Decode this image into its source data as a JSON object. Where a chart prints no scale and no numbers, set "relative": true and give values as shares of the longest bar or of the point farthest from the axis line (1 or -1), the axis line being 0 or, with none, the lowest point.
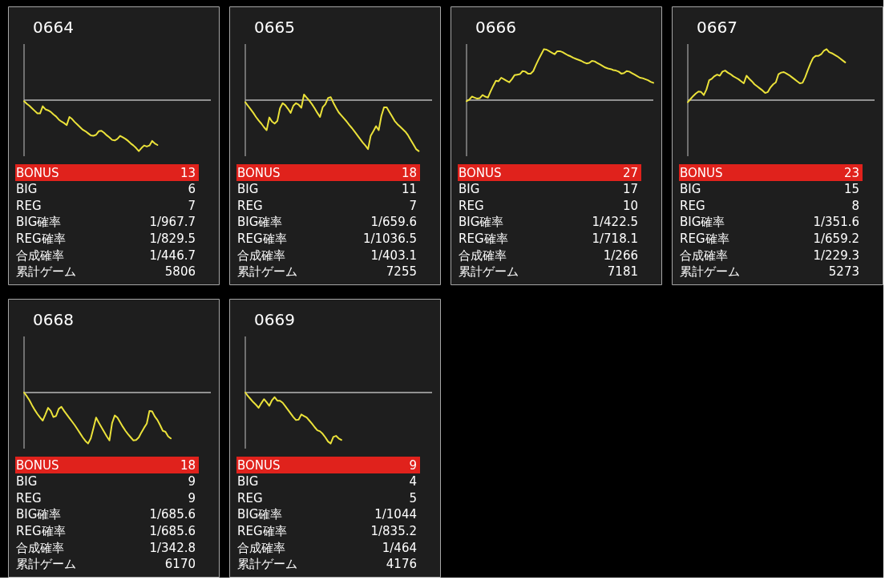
{
  "chart_data": [
    {
      "type": "line",
      "title": "0664",
      "relative": true,
      "categories": [
        null,
        null,
        null,
        null,
        null,
        null,
        null,
        null,
        null,
        null,
        null,
        null,
        null,
        null,
        null,
        null,
        null,
        null,
        null,
        null,
        null,
        null,
        null,
        null,
        null,
        null,
        null,
        null,
        null,
        null,
        null,
        null,
        null,
        null,
        null,
        null,
        null,
        null,
        null,
        null,
        null,
        null,
        null,
        null,
        null,
        null,
        null,
        null,
        null,
        null,
        null,
        null,
        null,
        null,
        null,
        null,
        null,
        null,
        null,
        null,
        null,
        null,
        null,
        null,
        null,
        null,
        null,
        null,
        null,
        null,
        null
      ],
      "series": [
        {
          "color": "#ebe23a",
          "values": [
            -0.02,
            -0.07,
            -0.11,
            -0.16,
            -0.21,
            -0.26,
            -0.26,
            -0.12,
            -0.18,
            -0.2,
            -0.23,
            -0.28,
            -0.32,
            -0.38,
            -0.42,
            -0.45,
            -0.49,
            -0.33,
            -0.37,
            -0.43,
            -0.48,
            -0.53,
            -0.58,
            -0.61,
            -0.65,
            -0.69,
            -0.7,
            -0.68,
            -0.61,
            -0.6,
            -0.64,
            -0.69,
            -0.73,
            -0.78,
            -0.79,
            -0.76,
            -0.7,
            -0.73,
            -0.76,
            -0.8,
            -0.85,
            -0.89,
            -0.94,
            -1,
            -0.94,
            -0.89,
            -0.91,
            -0.89,
            -0.8,
            -0.85,
            -0.88,
            null,
            null,
            null,
            null,
            null,
            null,
            null,
            null,
            null,
            null,
            null,
            null,
            null,
            null,
            null,
            null,
            null,
            null,
            null,
            null
          ]
        }
      ],
      "annotations": [
        "BONUS",
        "13",
        "BIG",
        "6",
        "REG",
        "7",
        "BIG確率",
        "1/967.7",
        "REG確率",
        "1/829.5",
        "合成確率",
        "1/446.7",
        "累計ゲーム",
        "5806"
      ]
    },
    {
      "type": "line",
      "title": "0665",
      "relative": true,
      "categories": [
        null,
        null,
        null,
        null,
        null,
        null,
        null,
        null,
        null,
        null,
        null,
        null,
        null,
        null,
        null,
        null,
        null,
        null,
        null,
        null,
        null,
        null,
        null,
        null,
        null,
        null,
        null,
        null,
        null,
        null,
        null,
        null,
        null,
        null,
        null,
        null,
        null,
        null,
        null,
        null,
        null,
        null,
        null,
        null,
        null,
        null,
        null,
        null,
        null,
        null,
        null,
        null,
        null,
        null,
        null,
        null,
        null,
        null,
        null,
        null,
        null,
        null,
        null,
        null,
        null,
        null,
        null,
        null,
        null,
        null,
        null
      ],
      "series": [
        {
          "color": "#ebe23a",
          "values": [
            -0.04,
            -0.11,
            -0.18,
            -0.25,
            -0.33,
            -0.4,
            -0.46,
            -0.53,
            -0.59,
            -0.34,
            -0.42,
            -0.46,
            -0.41,
            -0.16,
            -0.06,
            -0.1,
            -0.17,
            -0.25,
            -0.11,
            -0.06,
            -0.09,
            -0.15,
            0.11,
            0.05,
            -0.01,
            -0.08,
            -0.16,
            -0.25,
            -0.33,
            -0.14,
            -0.08,
            0.04,
            0.06,
            -0.05,
            -0.15,
            -0.24,
            -0.3,
            -0.36,
            -0.42,
            -0.49,
            -0.55,
            -0.62,
            -0.69,
            -0.76,
            -0.83,
            -0.89,
            -0.96,
            -0.7,
            -0.61,
            -0.51,
            -0.59,
            -0.31,
            -0.14,
            -0.14,
            -0.23,
            -0.32,
            -0.41,
            -0.47,
            -0.52,
            -0.57,
            -0.62,
            -0.69,
            -0.78,
            -0.87,
            -0.96,
            -1,
            null,
            null,
            null,
            null,
            null
          ]
        }
      ],
      "annotations": [
        "BONUS",
        "18",
        "BIG",
        "11",
        "REG",
        "7",
        "BIG確率",
        "1/659.6",
        "REG確率",
        "1/1036.5",
        "合成確率",
        "1/403.1",
        "累計ゲーム",
        "7255"
      ]
    },
    {
      "type": "line",
      "title": "0666",
      "relative": true,
      "categories": [
        null,
        null,
        null,
        null,
        null,
        null,
        null,
        null,
        null,
        null,
        null,
        null,
        null,
        null,
        null,
        null,
        null,
        null,
        null,
        null,
        null,
        null,
        null,
        null,
        null,
        null,
        null,
        null,
        null,
        null,
        null,
        null,
        null,
        null,
        null,
        null,
        null,
        null,
        null,
        null,
        null,
        null,
        null,
        null,
        null,
        null,
        null,
        null,
        null,
        null,
        null,
        null,
        null,
        null,
        null,
        null,
        null,
        null,
        null,
        null,
        null,
        null,
        null,
        null,
        null,
        null,
        null,
        null,
        null,
        null,
        null
      ],
      "series": [
        {
          "color": "#ebe23a",
          "values": [
            -0.02,
            0.01,
            0.07,
            0.05,
            0.03,
            0.04,
            0.1,
            0.07,
            0.05,
            0.17,
            0.28,
            0.38,
            0.37,
            0.44,
            0.41,
            0.38,
            0.35,
            0.41,
            0.49,
            0.5,
            0.51,
            0.57,
            0.56,
            0.52,
            0.52,
            0.57,
            0.69,
            0.8,
            0.9,
            1,
            0.99,
            0.96,
            0.93,
            0.9,
            0.96,
            0.96,
            0.94,
            0.91,
            0.88,
            0.86,
            0.83,
            0.81,
            0.79,
            0.77,
            0.74,
            0.72,
            0.73,
            0.77,
            0.76,
            0.73,
            0.7,
            0.67,
            0.64,
            0.62,
            0.61,
            0.59,
            0.58,
            0.56,
            0.52,
            0.53,
            0.57,
            0.56,
            0.53,
            0.5,
            0.47,
            0.44,
            0.43,
            0.41,
            0.39,
            0.36,
            0.34
          ]
        }
      ],
      "annotations": [
        "BONUS",
        "27",
        "BIG",
        "17",
        "REG",
        "10",
        "BIG確率",
        "1/422.5",
        "REG確率",
        "1/718.1",
        "合成確率",
        "1/266",
        "累計ゲーム",
        "7181"
      ]
    },
    {
      "type": "line",
      "title": "0667",
      "relative": true,
      "categories": [
        null,
        null,
        null,
        null,
        null,
        null,
        null,
        null,
        null,
        null,
        null,
        null,
        null,
        null,
        null,
        null,
        null,
        null,
        null,
        null,
        null,
        null,
        null,
        null,
        null,
        null,
        null,
        null,
        null,
        null,
        null,
        null,
        null,
        null,
        null,
        null,
        null,
        null,
        null,
        null,
        null,
        null,
        null,
        null,
        null,
        null,
        null,
        null,
        null,
        null,
        null,
        null,
        null,
        null,
        null,
        null,
        null,
        null,
        null,
        null,
        null,
        null,
        null,
        null,
        null,
        null,
        null,
        null,
        null,
        null,
        null
      ],
      "series": [
        {
          "color": "#ebe23a",
          "values": [
            -0.04,
            0.02,
            0.08,
            0.13,
            0.17,
            0.16,
            0.1,
            0.21,
            0.39,
            0.42,
            0.47,
            0.5,
            0.48,
            0.56,
            0.58,
            0.54,
            0.51,
            0.47,
            0.44,
            0.41,
            0.37,
            0.33,
            0.48,
            0.42,
            0.37,
            0.31,
            0.27,
            0.23,
            0.19,
            0.14,
            0.16,
            0.25,
            0.31,
            0.35,
            0.51,
            0.54,
            0.55,
            0.52,
            0.49,
            0.45,
            0.41,
            0.37,
            0.33,
            0.34,
            0.45,
            0.59,
            0.72,
            0.83,
            0.87,
            0.87,
            0.9,
            0.97,
            1,
            0.94,
            0.92,
            0.89,
            0.86,
            0.82,
            0.78,
            0.74,
            null,
            null,
            null,
            null,
            null,
            null,
            null,
            null,
            null,
            null,
            null
          ]
        }
      ],
      "annotations": [
        "BONUS",
        "23",
        "BIG",
        "15",
        "REG",
        "8",
        "BIG確率",
        "1/351.6",
        "REG確率",
        "1/659.2",
        "合成確率",
        "1/229.3",
        "累計ゲーム",
        "5273"
      ]
    },
    {
      "type": "line",
      "title": "0668",
      "relative": true,
      "categories": [
        null,
        null,
        null,
        null,
        null,
        null,
        null,
        null,
        null,
        null,
        null,
        null,
        null,
        null,
        null,
        null,
        null,
        null,
        null,
        null,
        null,
        null,
        null,
        null,
        null,
        null,
        null,
        null,
        null,
        null,
        null,
        null,
        null,
        null,
        null,
        null,
        null,
        null,
        null,
        null,
        null,
        null,
        null,
        null,
        null,
        null,
        null,
        null,
        null,
        null,
        null,
        null,
        null,
        null,
        null,
        null,
        null,
        null,
        null,
        null,
        null,
        null,
        null,
        null,
        null,
        null,
        null,
        null,
        null,
        null,
        null
      ],
      "series": [
        {
          "color": "#ebe23a",
          "values": [
            0,
            -0.07,
            -0.15,
            -0.25,
            -0.34,
            -0.42,
            -0.49,
            -0.55,
            -0.43,
            -0.3,
            -0.36,
            -0.48,
            -0.46,
            -0.32,
            -0.28,
            -0.36,
            -0.43,
            -0.5,
            -0.57,
            -0.64,
            -0.72,
            -0.8,
            -0.88,
            -0.95,
            -1,
            -0.9,
            -0.7,
            -0.49,
            -0.59,
            -0.68,
            -0.77,
            -0.86,
            -0.94,
            -0.6,
            -0.45,
            -0.49,
            -0.58,
            -0.67,
            -0.75,
            -0.82,
            -0.88,
            -0.94,
            -0.93,
            -0.88,
            -0.78,
            -0.69,
            -0.61,
            -0.36,
            -0.37,
            -0.47,
            -0.54,
            -0.64,
            -0.75,
            -0.77,
            -0.86,
            -0.9,
            null,
            null,
            null,
            null,
            null,
            null,
            null,
            null,
            null,
            null,
            null,
            null,
            null,
            null,
            null
          ]
        }
      ],
      "annotations": [
        "BONUS",
        "18",
        "BIG",
        "9",
        "REG",
        "9",
        "BIG確率",
        "1/685.6",
        "REG確率",
        "1/685.6",
        "合成確率",
        "1/342.8",
        "累計ゲーム",
        "6170"
      ]
    },
    {
      "type": "line",
      "title": "0669",
      "relative": true,
      "categories": [
        null,
        null,
        null,
        null,
        null,
        null,
        null,
        null,
        null,
        null,
        null,
        null,
        null,
        null,
        null,
        null,
        null,
        null,
        null,
        null,
        null,
        null,
        null,
        null,
        null,
        null,
        null,
        null,
        null,
        null,
        null,
        null,
        null,
        null,
        null,
        null,
        null,
        null,
        null,
        null,
        null,
        null,
        null,
        null,
        null,
        null,
        null,
        null,
        null,
        null,
        null,
        null,
        null,
        null,
        null,
        null,
        null,
        null,
        null,
        null,
        null,
        null,
        null,
        null,
        null,
        null,
        null,
        null,
        null,
        null,
        null
      ],
      "series": [
        {
          "color": "#ebe23a",
          "values": [
            0,
            -0.07,
            -0.13,
            -0.19,
            -0.24,
            -0.3,
            -0.21,
            -0.13,
            -0.19,
            -0.26,
            -0.15,
            -0.09,
            -0.16,
            -0.16,
            -0.2,
            -0.27,
            -0.34,
            -0.41,
            -0.48,
            -0.54,
            -0.53,
            -0.43,
            -0.46,
            -0.49,
            -0.55,
            -0.61,
            -0.68,
            -0.74,
            -0.76,
            -0.81,
            -0.88,
            -0.96,
            -1,
            -0.87,
            -0.85,
            -0.9,
            -0.93,
            null,
            null,
            null,
            null,
            null,
            null,
            null,
            null,
            null,
            null,
            null,
            null,
            null,
            null,
            null,
            null,
            null,
            null,
            null,
            null,
            null,
            null,
            null,
            null,
            null,
            null,
            null,
            null,
            null,
            null,
            null,
            null,
            null,
            null
          ]
        }
      ],
      "annotations": [
        "BONUS",
        "9",
        "BIG",
        "4",
        "REG",
        "5",
        "BIG確率",
        "1/1044",
        "REG確率",
        "1/835.2",
        "合成確率",
        "1/464",
        "累計ゲーム",
        "4176"
      ]
    }
  ]
}
